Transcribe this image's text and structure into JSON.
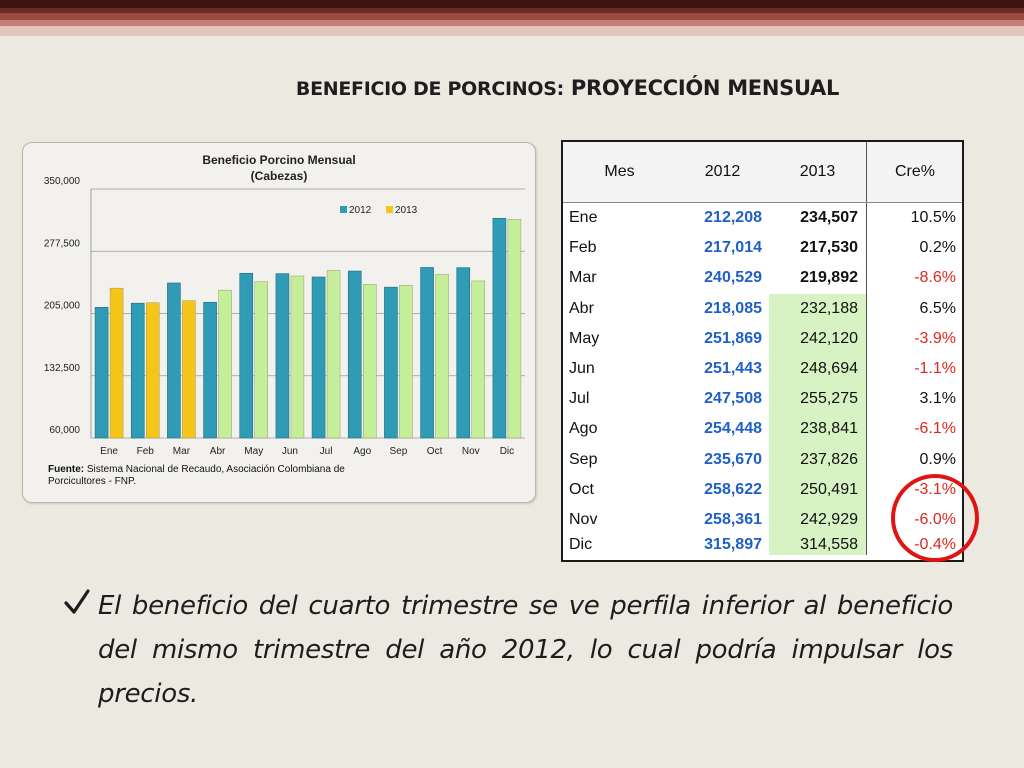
{
  "page": {
    "title_part1": "BENEFICIO DE PORCINOS:",
    "title_part2": "PROYECCIÓN MENSUAL"
  },
  "chart_data": {
    "type": "bar",
    "title": "Beneficio Porcino Mensual",
    "subtitle": "(Cabezas)",
    "categories": [
      "Ene",
      "Feb",
      "Mar",
      "Abr",
      "May",
      "Jun",
      "Jul",
      "Ago",
      "Sep",
      "Oct",
      "Nov",
      "Dic"
    ],
    "series": [
      {
        "name": "2012",
        "color": "#2f9bb4",
        "values": [
          212208,
          217014,
          240529,
          218085,
          251869,
          251443,
          247508,
          254448,
          235670,
          258622,
          258361,
          315897
        ]
      },
      {
        "name": "2013",
        "colors_by_month": [
          "#f5c518",
          "#f5c518",
          "#f5c518",
          "#c4ee9a",
          "#c4ee9a",
          "#c4ee9a",
          "#c4ee9a",
          "#c4ee9a",
          "#c4ee9a",
          "#c4ee9a",
          "#c4ee9a",
          "#c4ee9a"
        ],
        "legend_color": "#f5c518",
        "values": [
          234507,
          217530,
          219892,
          232188,
          242120,
          248694,
          255275,
          238841,
          237826,
          250491,
          242929,
          314558
        ]
      }
    ],
    "yticks": [
      "60,000",
      "132,500",
      "205,000",
      "277,500",
      "350,000"
    ],
    "ylim": [
      60000,
      350000
    ],
    "grid": true,
    "legend": "top-center"
  },
  "chart": {
    "footnote_label": "Fuente:",
    "footnote_text": " Sistema Nacional de Recaudo, Asociación Colombiana de Porcicultores - FNP."
  },
  "table": {
    "headers": {
      "mes": "Mes",
      "y2012": "2012",
      "y2013": "2013",
      "cre": "Cre%"
    },
    "rows": [
      {
        "mes": "Ene",
        "y2012": "212,208",
        "y2013": "234,507",
        "cre": "10.5%"
      },
      {
        "mes": "Feb",
        "y2012": "217,014",
        "y2013": "217,530",
        "cre": "0.2%"
      },
      {
        "mes": "Mar",
        "y2012": "240,529",
        "y2013": "219,892",
        "cre": "-8.6%"
      },
      {
        "mes": "Abr",
        "y2012": "218,085",
        "y2013": "232,188",
        "cre": "6.5%"
      },
      {
        "mes": "May",
        "y2012": "251,869",
        "y2013": "242,120",
        "cre": "-3.9%"
      },
      {
        "mes": "Jun",
        "y2012": "251,443",
        "y2013": "248,694",
        "cre": "-1.1%"
      },
      {
        "mes": "Jul",
        "y2012": "247,508",
        "y2013": "255,275",
        "cre": "3.1%"
      },
      {
        "mes": "Ago",
        "y2012": "254,448",
        "y2013": "238,841",
        "cre": "-6.1%"
      },
      {
        "mes": "Sep",
        "y2012": "235,670",
        "y2013": "237,826",
        "cre": "0.9%"
      },
      {
        "mes": "Oct",
        "y2012": "258,622",
        "y2013": "250,491",
        "cre": "-3.1%"
      },
      {
        "mes": "Nov",
        "y2012": "258,361",
        "y2013": "242,929",
        "cre": "-6.0%"
      },
      {
        "mes": "Dic",
        "y2012": "315,897",
        "y2013": "314,558",
        "cre": "-0.4%"
      }
    ],
    "bold_2013_rows": [
      0,
      1,
      2
    ],
    "highlight_2013_rows": [
      3,
      4,
      5,
      6,
      7,
      8,
      9,
      10,
      11
    ],
    "negative_color": "#e0261e",
    "value_2012_color": "#1f5fc8",
    "highlight_color": "#d7f2c3"
  },
  "bullet": {
    "text": "El beneficio del cuarto trimestre se ve perfila inferior al beneficio del mismo trimestre del año 2012, lo cual podría impulsar los precios."
  }
}
